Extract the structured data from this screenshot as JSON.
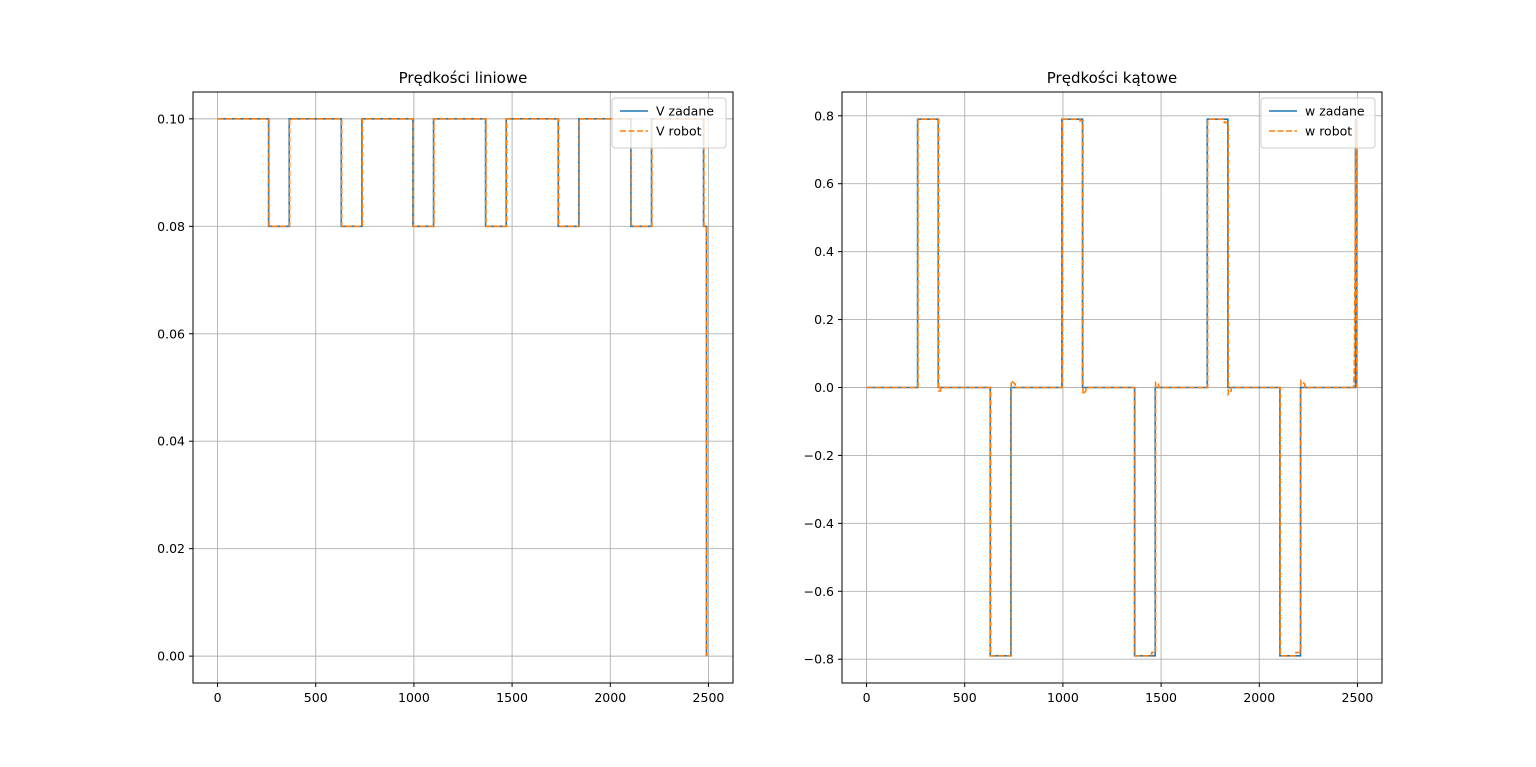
{
  "colors": {
    "series_zadane": "#1f77b4",
    "series_robot": "#ff7f0e"
  },
  "chart_data": [
    {
      "type": "line",
      "title": "Prędkości liniowe",
      "xlim": [
        -125,
        2625
      ],
      "ylim": [
        -0.005,
        0.105
      ],
      "xticks": [
        0,
        500,
        1000,
        1500,
        2000,
        2500
      ],
      "xtick_labels": [
        "0",
        "500",
        "1000",
        "1500",
        "2000",
        "2500"
      ],
      "yticks": [
        0.0,
        0.02,
        0.04,
        0.06,
        0.08,
        0.1
      ],
      "ytick_labels": [
        "0.00",
        "0.02",
        "0.04",
        "0.06",
        "0.08",
        "0.10"
      ],
      "grid": true,
      "legend": {
        "placement": "top-right",
        "entries": [
          "V zadane",
          "V robot"
        ]
      },
      "series": [
        {
          "name": "V zadane",
          "style": "solid",
          "x": [
            0,
            260,
            260,
            365,
            365,
            630,
            630,
            735,
            735,
            995,
            995,
            1100,
            1100,
            1365,
            1365,
            1470,
            1470,
            1735,
            1735,
            1840,
            1840,
            2105,
            2105,
            2210,
            2210,
            2475,
            2475,
            2490,
            2490
          ],
          "y": [
            0.1,
            0.1,
            0.08,
            0.08,
            0.1,
            0.1,
            0.08,
            0.08,
            0.1,
            0.1,
            0.08,
            0.08,
            0.1,
            0.1,
            0.08,
            0.08,
            0.1,
            0.1,
            0.08,
            0.08,
            0.1,
            0.1,
            0.08,
            0.08,
            0.1,
            0.1,
            0.08,
            0.08,
            0.0
          ]
        },
        {
          "name": "V robot",
          "style": "dashed",
          "x": [
            0,
            262,
            262,
            367,
            367,
            632,
            632,
            737,
            737,
            997,
            997,
            1102,
            1102,
            1367,
            1367,
            1472,
            1472,
            1737,
            1737,
            1842,
            1842,
            2107,
            2107,
            2212,
            2212,
            2477,
            2477,
            2492,
            2492
          ],
          "y": [
            0.1,
            0.1,
            0.08,
            0.08,
            0.1,
            0.1,
            0.08,
            0.08,
            0.1,
            0.1,
            0.08,
            0.08,
            0.1,
            0.1,
            0.08,
            0.08,
            0.1,
            0.1,
            0.08,
            0.08,
            0.1,
            0.1,
            0.08,
            0.08,
            0.1,
            0.1,
            0.08,
            0.08,
            0.0
          ]
        }
      ]
    },
    {
      "type": "line",
      "title": "Prędkości kątowe",
      "xlim": [
        -125,
        2625
      ],
      "ylim": [
        -0.87,
        0.87
      ],
      "xticks": [
        0,
        500,
        1000,
        1500,
        2000,
        2500
      ],
      "xtick_labels": [
        "0",
        "500",
        "1000",
        "1500",
        "2000",
        "2500"
      ],
      "yticks": [
        -0.8,
        -0.6,
        -0.4,
        -0.2,
        0.0,
        0.2,
        0.4,
        0.6,
        0.8
      ],
      "ytick_labels": [
        "−0.8",
        "−0.6",
        "−0.4",
        "−0.2",
        "0.0",
        "0.2",
        "0.4",
        "0.6",
        "0.8"
      ],
      "grid": true,
      "legend": {
        "placement": "top-right",
        "entries": [
          "w zadane",
          "w robot"
        ]
      },
      "series": [
        {
          "name": "w zadane",
          "style": "solid",
          "x": [
            0,
            260,
            260,
            365,
            365,
            630,
            630,
            735,
            735,
            995,
            995,
            1100,
            1100,
            1365,
            1365,
            1470,
            1470,
            1735,
            1735,
            1840,
            1840,
            2105,
            2105,
            2210,
            2210,
            2490,
            2490,
            2495,
            2495
          ],
          "y": [
            0.0,
            0.0,
            0.79,
            0.79,
            0.0,
            0.0,
            -0.79,
            -0.79,
            0.0,
            0.0,
            0.79,
            0.79,
            0.0,
            0.0,
            -0.79,
            -0.79,
            0.0,
            0.0,
            0.79,
            0.79,
            0.0,
            0.0,
            -0.79,
            -0.79,
            0.0,
            0.0,
            0.79,
            0.79,
            0.0
          ]
        },
        {
          "name": "w robot",
          "style": "dashed",
          "x": [
            0,
            262,
            262,
            367,
            367,
            377,
            377,
            632,
            632,
            737,
            737,
            757,
            757,
            997,
            997,
            1087,
            1087,
            1102,
            1102,
            1117,
            1117,
            1367,
            1367,
            1452,
            1452,
            1472,
            1472,
            1487,
            1487,
            1737,
            1737,
            1822,
            1822,
            1842,
            1842,
            1857,
            1857,
            2107,
            2107,
            2187,
            2187,
            2212,
            2212,
            2232,
            2232,
            2480,
            2484,
            2488,
            2492,
            2494,
            2496
          ],
          "y": [
            0.0,
            0.0,
            0.79,
            0.79,
            -0.01,
            -0.01,
            0.0,
            0.0,
            -0.79,
            -0.79,
            0.02,
            0.01,
            0.0,
            0.0,
            0.79,
            0.79,
            0.785,
            0.785,
            -0.02,
            -0.01,
            0.0,
            0.0,
            -0.79,
            -0.79,
            -0.78,
            -0.78,
            0.015,
            0.01,
            0.0,
            0.0,
            0.79,
            0.79,
            0.78,
            0.78,
            -0.02,
            -0.01,
            0.0,
            0.0,
            -0.79,
            -0.79,
            -0.78,
            -0.78,
            0.02,
            0.01,
            0.0,
            0.0,
            0.05,
            0.4,
            0.79,
            0.7,
            0.0
          ]
        }
      ]
    }
  ]
}
